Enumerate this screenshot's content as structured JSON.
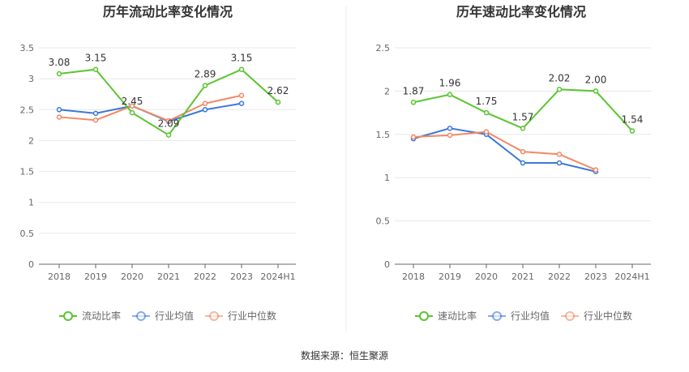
{
  "source": "数据来源：恒生聚源",
  "colors": {
    "main": "#5cc431",
    "avg": "#3c78d8",
    "median": "#f08a64",
    "grid": "#e8e8e8",
    "axis": "#666666",
    "divider": "#eeeeee"
  },
  "chart_data": [
    {
      "type": "line",
      "title": "历年流动比率变化情况",
      "xlabel": "",
      "ylabel": "",
      "categories": [
        "2018",
        "2019",
        "2020",
        "2021",
        "2022",
        "2023",
        "2024H1"
      ],
      "ylim": [
        0,
        3.5
      ],
      "yticks": [
        "0",
        "0.5",
        "1",
        "1.5",
        "2",
        "2.5",
        "3",
        "3.5"
      ],
      "grid": true,
      "legend_position": "bottom",
      "series": [
        {
          "name": "流动比率",
          "role": "main",
          "values": [
            3.08,
            3.15,
            2.45,
            2.09,
            2.89,
            3.15,
            2.62
          ],
          "labels": [
            "3.08",
            "3.15",
            "2.45",
            "2.09",
            "2.89",
            "3.15",
            "2.62"
          ]
        },
        {
          "name": "行业均值",
          "role": "avg",
          "values": [
            2.5,
            2.44,
            2.56,
            2.31,
            2.5,
            2.6,
            null
          ]
        },
        {
          "name": "行业中位数",
          "role": "median",
          "values": [
            2.38,
            2.33,
            2.56,
            2.32,
            2.6,
            2.73,
            null
          ]
        }
      ]
    },
    {
      "type": "line",
      "title": "历年速动比率变化情况",
      "xlabel": "",
      "ylabel": "",
      "categories": [
        "2018",
        "2019",
        "2020",
        "2021",
        "2022",
        "2023",
        "2024H1"
      ],
      "ylim": [
        0,
        2.5
      ],
      "yticks": [
        "0",
        "0.5",
        "1",
        "1.5",
        "2",
        "2.5"
      ],
      "grid": true,
      "legend_position": "bottom",
      "series": [
        {
          "name": "速动比率",
          "role": "main",
          "values": [
            1.87,
            1.96,
            1.75,
            1.57,
            2.02,
            2.0,
            1.54
          ],
          "labels": [
            "1.87",
            "1.96",
            "1.75",
            "1.57",
            "2.02",
            "2.00",
            "1.54"
          ]
        },
        {
          "name": "行业均值",
          "role": "avg",
          "values": [
            1.45,
            1.57,
            1.5,
            1.17,
            1.17,
            1.07,
            null
          ]
        },
        {
          "name": "行业中位数",
          "role": "median",
          "values": [
            1.47,
            1.49,
            1.53,
            1.3,
            1.27,
            1.09,
            null
          ]
        }
      ]
    }
  ]
}
